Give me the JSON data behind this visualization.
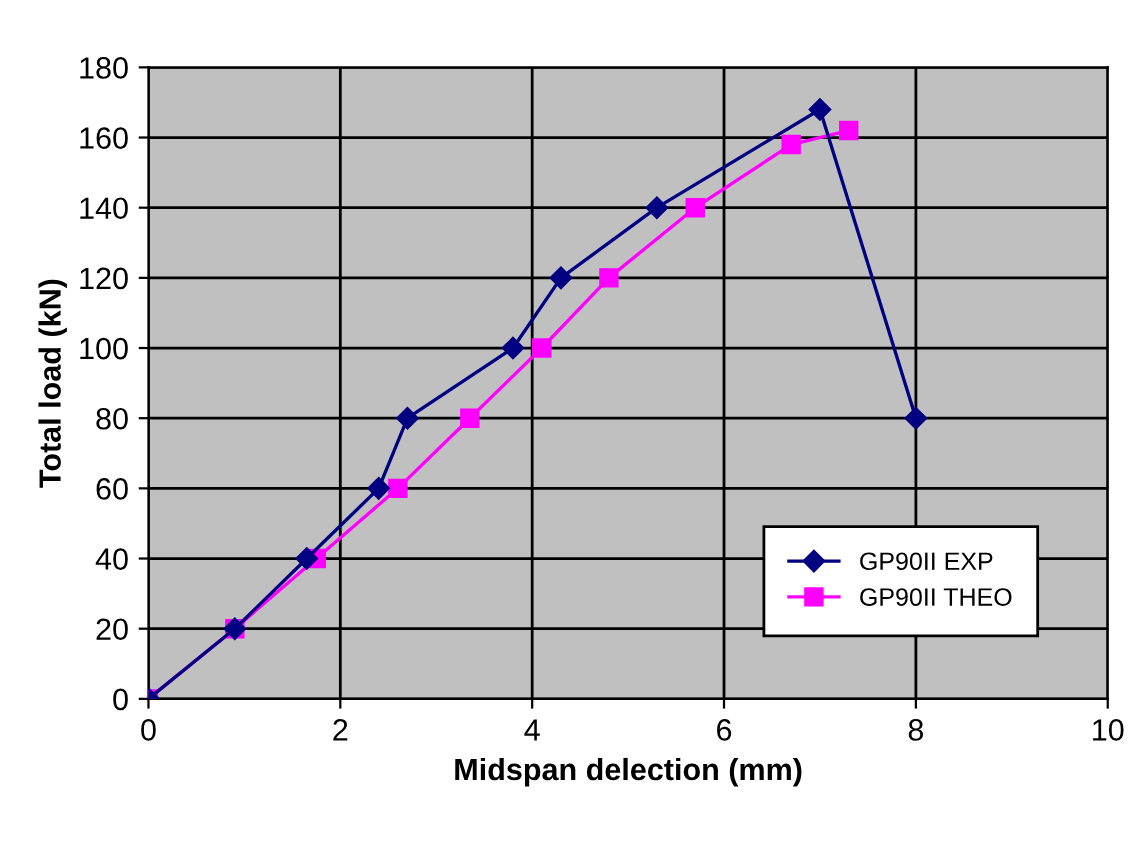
{
  "chart_data": {
    "type": "line",
    "xlabel": "Midspan delection (mm)",
    "ylabel": "Total load (kN)",
    "xlim": [
      0,
      10
    ],
    "xticks": [
      0,
      2,
      4,
      6,
      8,
      10
    ],
    "ylim": [
      0,
      180
    ],
    "yticks": [
      0,
      20,
      40,
      60,
      80,
      100,
      120,
      140,
      160,
      180
    ],
    "grid": true,
    "legend": "lower right",
    "series": [
      {
        "name": "GP90II EXP",
        "color": "#000080",
        "marker": "diamond",
        "x": [
          0,
          0.9,
          1.65,
          2.4,
          2.7,
          3.8,
          4.3,
          5.3,
          7.0,
          8.0
        ],
        "values": [
          0,
          20,
          40,
          60,
          80,
          100,
          120,
          140,
          168,
          80
        ]
      },
      {
        "name": "GP90II THEO",
        "color": "#ff00ff",
        "marker": "square",
        "x": [
          0,
          0.9,
          1.75,
          2.6,
          3.35,
          4.1,
          4.8,
          5.7,
          6.7,
          7.3
        ],
        "values": [
          0,
          20,
          40,
          60,
          80,
          100,
          120,
          140,
          158,
          162
        ]
      }
    ]
  }
}
